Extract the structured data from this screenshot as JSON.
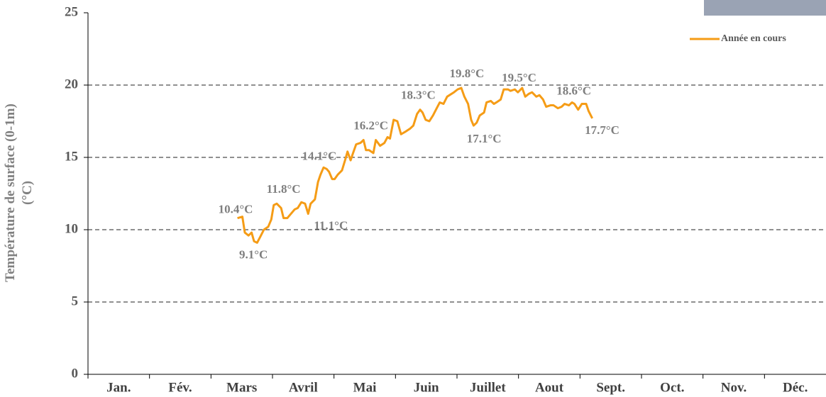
{
  "chart_data": {
    "type": "line",
    "ylabel": [
      "Température de surface (0-1m)",
      "(°C)"
    ],
    "categories": [
      "Jan.",
      "Fév.",
      "Mars",
      "Avril",
      "Mai",
      "Juin",
      "Juillet",
      "Aout",
      "Sept.",
      "Oct.",
      "Nov.",
      "Déc."
    ],
    "xlim": [
      0,
      12
    ],
    "ylim": [
      0,
      25
    ],
    "yticks": [
      0,
      5,
      10,
      15,
      20,
      25
    ],
    "grid": true,
    "legend": "top-right",
    "series": [
      {
        "name": "Année en cours",
        "color": "#f59c16",
        "x": [
          2.43,
          2.51,
          2.55,
          2.61,
          2.66,
          2.7,
          2.75,
          2.8,
          2.86,
          2.93,
          2.98,
          3.02,
          3.07,
          3.14,
          3.18,
          3.24,
          3.3,
          3.36,
          3.41,
          3.47,
          3.53,
          3.58,
          3.62,
          3.69,
          3.74,
          3.78,
          3.83,
          3.88,
          3.92,
          3.97,
          4.01,
          4.06,
          4.13,
          4.18,
          4.22,
          4.27,
          4.31,
          4.36,
          4.43,
          4.48,
          4.52,
          4.57,
          4.64,
          4.68,
          4.75,
          4.82,
          4.87,
          4.91,
          4.97,
          5.03,
          5.09,
          5.17,
          5.24,
          5.29,
          5.35,
          5.4,
          5.44,
          5.49,
          5.55,
          5.61,
          5.67,
          5.72,
          5.78,
          5.84,
          5.95,
          6.01,
          6.07,
          6.12,
          6.18,
          6.23,
          6.27,
          6.32,
          6.37,
          6.44,
          6.48,
          6.55,
          6.6,
          6.64,
          6.71,
          6.76,
          6.83,
          6.87,
          6.94,
          6.99,
          7.06,
          7.11,
          7.17,
          7.22,
          7.29,
          7.34,
          7.4,
          7.45,
          7.52,
          7.57,
          7.64,
          7.7,
          7.75,
          7.82,
          7.87,
          7.91,
          7.97,
          8.03,
          8.1,
          8.14,
          8.2
        ],
        "values": [
          10.8,
          10.9,
          9.8,
          9.6,
          9.8,
          9.2,
          9.1,
          9.5,
          10.0,
          10.2,
          10.7,
          11.7,
          11.8,
          11.5,
          10.8,
          10.8,
          11.1,
          11.4,
          11.5,
          11.9,
          11.8,
          11.1,
          11.8,
          12.1,
          13.3,
          13.8,
          14.3,
          14.2,
          14.0,
          13.5,
          13.5,
          13.8,
          14.1,
          14.8,
          15.4,
          14.8,
          15.3,
          15.9,
          16.0,
          16.2,
          15.5,
          15.5,
          15.3,
          16.2,
          15.8,
          16.0,
          16.4,
          16.3,
          17.6,
          17.5,
          16.6,
          16.8,
          17.0,
          17.2,
          18.0,
          18.3,
          18.1,
          17.6,
          17.5,
          17.9,
          18.4,
          18.8,
          18.7,
          19.2,
          19.5,
          19.7,
          19.8,
          19.2,
          18.7,
          17.6,
          17.2,
          17.4,
          17.9,
          18.1,
          18.8,
          18.9,
          18.7,
          18.8,
          19.0,
          19.7,
          19.7,
          19.6,
          19.7,
          19.5,
          19.8,
          19.2,
          19.4,
          19.5,
          19.2,
          19.3,
          19.0,
          18.5,
          18.6,
          18.6,
          18.4,
          18.5,
          18.7,
          18.6,
          18.8,
          18.7,
          18.3,
          18.7,
          18.7,
          18.2,
          17.7
        ]
      }
    ],
    "annotations": [
      {
        "text": "10.4°C",
        "x": 2.4,
        "value": 10.4,
        "position": "above"
      },
      {
        "text": "9.1°C",
        "x": 2.69,
        "value": 9.1,
        "position": "below"
      },
      {
        "text": "11.8°C",
        "x": 3.18,
        "value": 11.8,
        "position": "above"
      },
      {
        "text": "11.1°C",
        "x": 3.95,
        "value": 11.1,
        "position": "below"
      },
      {
        "text": "14.1°C",
        "x": 3.76,
        "value": 14.1,
        "position": "above"
      },
      {
        "text": "16.2°C",
        "x": 4.6,
        "value": 16.2,
        "position": "above"
      },
      {
        "text": "18.3°C",
        "x": 5.37,
        "value": 18.3,
        "position": "above"
      },
      {
        "text": "19.8°C",
        "x": 6.16,
        "value": 19.8,
        "position": "above"
      },
      {
        "text": "17.1°C",
        "x": 6.44,
        "value": 17.1,
        "position": "below"
      },
      {
        "text": "19.5°C",
        "x": 7.01,
        "value": 19.5,
        "position": "above"
      },
      {
        "text": "18.6°C",
        "x": 7.9,
        "value": 18.6,
        "position": "above"
      },
      {
        "text": "17.7°C",
        "x": 8.36,
        "value": 17.7,
        "position": "below"
      }
    ]
  }
}
